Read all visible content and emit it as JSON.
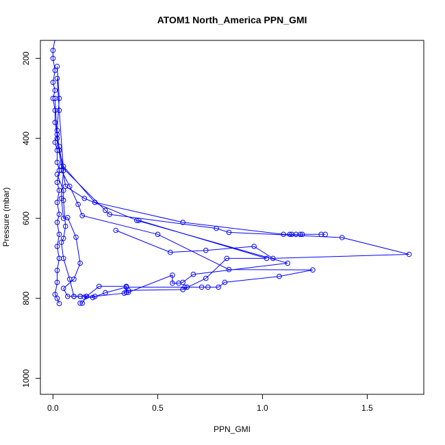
{
  "chart_data": {
    "type": "scatter",
    "title": "ATOM1 North_America PPN_GMI",
    "xlabel": "PPN_GMI",
    "ylabel": "Pressure (mbar)",
    "xlim": [
      -0.06,
      1.77
    ],
    "ylim": [
      1040,
      155
    ],
    "y_reversed": true,
    "grid": false,
    "legend": "none",
    "x_ticks": [
      {
        "value": 0.0,
        "label": "0.0"
      },
      {
        "value": 0.5,
        "label": "0.5"
      },
      {
        "value": 1.0,
        "label": "1.0"
      },
      {
        "value": 1.5,
        "label": "1.5"
      }
    ],
    "y_ticks": [
      {
        "value": 200,
        "label": "200"
      },
      {
        "value": 400,
        "label": "400"
      },
      {
        "value": 600,
        "label": "600"
      },
      {
        "value": 800,
        "label": "800"
      },
      {
        "value": 1000,
        "label": "1000"
      }
    ],
    "color": "#0000ff",
    "series": [
      {
        "points": [
          [
            0.01,
            150
          ],
          [
            0.0,
            180
          ],
          [
            0.0,
            200
          ],
          [
            0.01,
            230
          ],
          [
            0.0,
            260
          ],
          [
            0.01,
            280
          ],
          [
            0.0,
            300
          ],
          [
            0.01,
            330
          ],
          [
            0.01,
            360
          ],
          [
            0.02,
            390
          ],
          [
            0.01,
            410
          ],
          [
            0.02,
            430
          ],
          [
            0.02,
            460
          ],
          [
            0.03,
            480
          ],
          [
            0.02,
            510
          ],
          [
            0.03,
            530
          ],
          [
            0.02,
            560
          ],
          [
            0.03,
            590
          ],
          [
            0.02,
            610
          ],
          [
            0.03,
            640
          ],
          [
            0.02,
            670
          ],
          [
            0.03,
            700
          ],
          [
            0.02,
            730
          ],
          [
            0.02,
            760
          ],
          [
            0.01,
            790
          ],
          [
            0.02,
            800
          ],
          [
            0.03,
            813
          ]
        ]
      },
      {
        "points": [
          [
            0.02,
            220
          ],
          [
            0.03,
            300
          ],
          [
            0.02,
            380
          ],
          [
            0.03,
            430
          ],
          [
            0.05,
            470
          ],
          [
            0.2,
            560
          ],
          [
            0.62,
            610
          ],
          [
            1.1,
            640
          ],
          [
            1.14,
            640
          ],
          [
            1.16,
            640
          ],
          [
            1.18,
            640
          ],
          [
            1.3,
            640
          ],
          [
            1.28,
            640
          ],
          [
            1.19,
            640
          ],
          [
            1.13,
            640
          ]
        ]
      },
      {
        "points": [
          [
            0.01,
            300
          ],
          [
            0.02,
            400
          ],
          [
            0.04,
            470
          ],
          [
            0.25,
            580
          ],
          [
            0.27,
            590
          ],
          [
            0.78,
            625
          ],
          [
            0.84,
            635
          ],
          [
            1.38,
            648
          ],
          [
            1.7,
            690
          ],
          [
            1.05,
            700
          ],
          [
            0.96,
            670
          ],
          [
            0.73,
            680
          ],
          [
            0.56,
            685
          ],
          [
            0.3,
            630
          ]
        ]
      },
      {
        "points": [
          [
            0.03,
            420
          ],
          [
            0.06,
            520
          ],
          [
            0.15,
            550
          ],
          [
            0.4,
            605
          ],
          [
            1.12,
            712
          ],
          [
            0.67,
            740
          ],
          [
            0.62,
            760
          ],
          [
            0.6,
            762
          ],
          [
            0.57,
            762
          ],
          [
            0.57,
            742
          ],
          [
            0.36,
            785
          ],
          [
            0.35,
            785
          ],
          [
            0.35,
            785
          ],
          [
            0.35,
            770
          ],
          [
            0.22,
            770
          ],
          [
            0.16,
            795
          ],
          [
            0.14,
            812
          ],
          [
            0.13,
            812
          ]
        ]
      },
      {
        "points": [
          [
            0.04,
            480
          ],
          [
            0.08,
            520
          ],
          [
            0.12,
            565
          ],
          [
            0.14,
            593
          ],
          [
            0.5,
            640
          ],
          [
            0.84,
            728
          ],
          [
            1.24,
            729
          ],
          [
            1.08,
            745
          ],
          [
            0.82,
            760
          ],
          [
            0.79,
            772
          ],
          [
            0.74,
            772
          ],
          [
            0.71,
            772
          ],
          [
            0.64,
            772
          ],
          [
            0.63,
            772
          ],
          [
            0.35,
            772
          ],
          [
            0.25,
            786
          ],
          [
            0.19,
            798
          ],
          [
            0.15,
            797
          ]
        ]
      },
      {
        "points": [
          [
            0.02,
            250
          ],
          [
            0.03,
            330
          ],
          [
            0.05,
            480
          ],
          [
            0.04,
            550
          ],
          [
            0.05,
            600
          ],
          [
            0.07,
            598
          ],
          [
            0.11,
            647
          ],
          [
            0.13,
            712
          ],
          [
            0.1,
            752
          ],
          [
            0.05,
            775
          ],
          [
            0.07,
            795
          ],
          [
            0.1,
            795
          ],
          [
            0.13,
            795
          ],
          [
            0.16,
            795
          ]
        ]
      },
      {
        "points": [
          [
            0.41,
            605
          ],
          [
            1.02,
            700
          ],
          [
            0.83,
            700
          ],
          [
            0.73,
            750
          ],
          [
            0.62,
            778
          ],
          [
            0.36,
            780
          ],
          [
            0.34,
            787
          ],
          [
            0.2,
            795
          ],
          [
            0.13,
            795
          ],
          [
            0.1,
            795
          ],
          [
            0.08,
            752
          ],
          [
            0.05,
            700
          ],
          [
            0.04,
            660
          ],
          [
            0.05,
            650
          ],
          [
            0.06,
            620
          ],
          [
            0.05,
            555
          ],
          [
            0.05,
            530
          ],
          [
            0.02,
            490
          ]
        ]
      }
    ]
  }
}
